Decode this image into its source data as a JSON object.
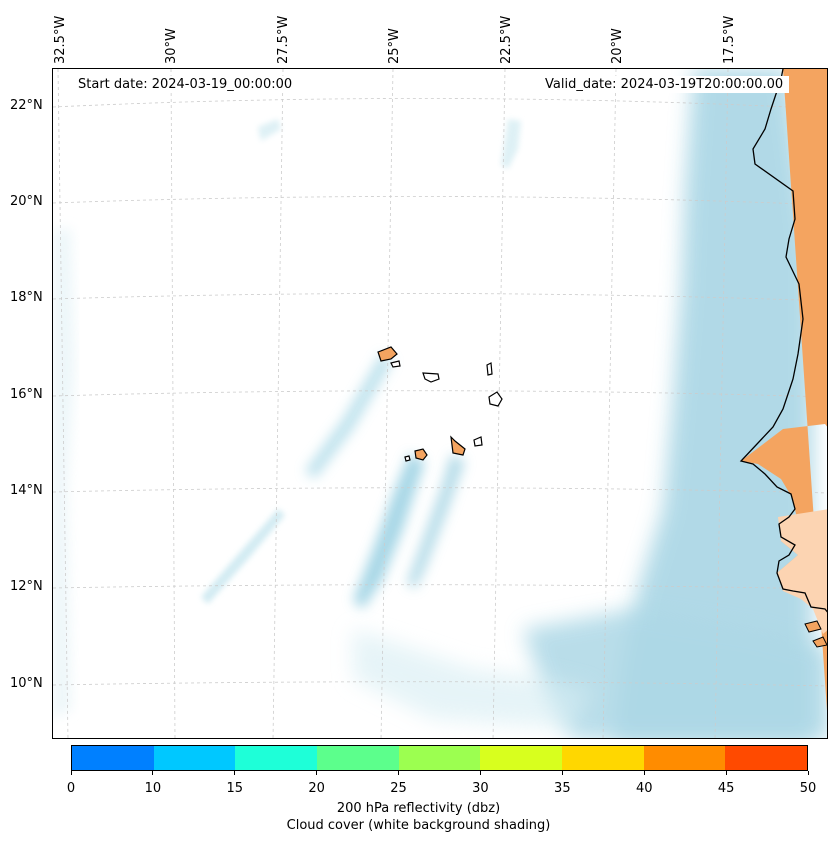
{
  "map": {
    "start_date": "Start date: 2024-03-19_00:00:00",
    "valid_date": "Valid_date: 2024-03-19T20:00:00.00",
    "lon_labels": [
      "32.5°W",
      "30°W",
      "27.5°W",
      "25°W",
      "22.5°W",
      "20°W",
      "17.5°W"
    ],
    "lat_labels": [
      "22°N",
      "20°N",
      "18°N",
      "16°N",
      "14°N",
      "12°N",
      "10°N"
    ],
    "colors": {
      "land": "#f4a460",
      "cloud": "#add8e6",
      "grid": "#cccccc",
      "coast": "#000000"
    }
  },
  "colorbar": {
    "colors": [
      "#0080ff",
      "#00c8ff",
      "#1effd8",
      "#5cff8c",
      "#9cff50",
      "#d8ff1e",
      "#ffd700",
      "#ff8c00",
      "#ff4a00"
    ],
    "ticks": [
      "0",
      "10",
      "15",
      "20",
      "25",
      "30",
      "35",
      "40",
      "45",
      "50"
    ],
    "label": "200 hPa reflectivity (dbz)",
    "sublabel": "Cloud cover (white background shading)"
  }
}
